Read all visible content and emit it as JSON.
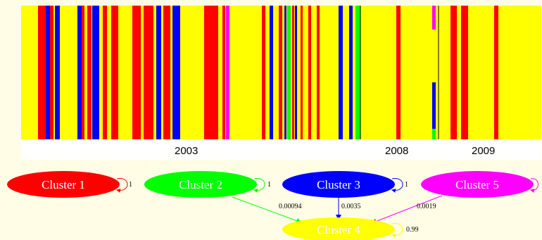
{
  "timeline": {
    "background_color": "#ffff00",
    "cluster_colors": {
      "1": "#ff0000",
      "2": "#00ff00",
      "3": "#0000ff",
      "4": "#ffff00",
      "5": "#ff00ff"
    },
    "years": [
      "2003",
      "2008",
      "2009"
    ]
  },
  "graph": {
    "nodes": [
      {
        "id": "c1",
        "label": "Cluster 1",
        "color": "#ff0000",
        "self_loop": "1"
      },
      {
        "id": "c2",
        "label": "Cluster 2",
        "color": "#00ff00",
        "self_loop": "1"
      },
      {
        "id": "c3",
        "label": "Cluster 3",
        "color": "#0000ff",
        "self_loop": "1"
      },
      {
        "id": "c5",
        "label": "Cluster 5",
        "color": "#ff00ff",
        "self_loop": "1"
      },
      {
        "id": "c4",
        "label": "Cluster 4",
        "color": "#ffff00",
        "self_loop": "0.99"
      }
    ],
    "edges": [
      {
        "from": "c2",
        "to": "c4",
        "label": "0.00094",
        "color": "#00ff00"
      },
      {
        "from": "c3",
        "to": "c4",
        "label": "0.0035",
        "color": "#0000ff"
      },
      {
        "from": "c5",
        "to": "c4",
        "label": "0.0019",
        "color": "#ff00ff"
      }
    ]
  }
}
